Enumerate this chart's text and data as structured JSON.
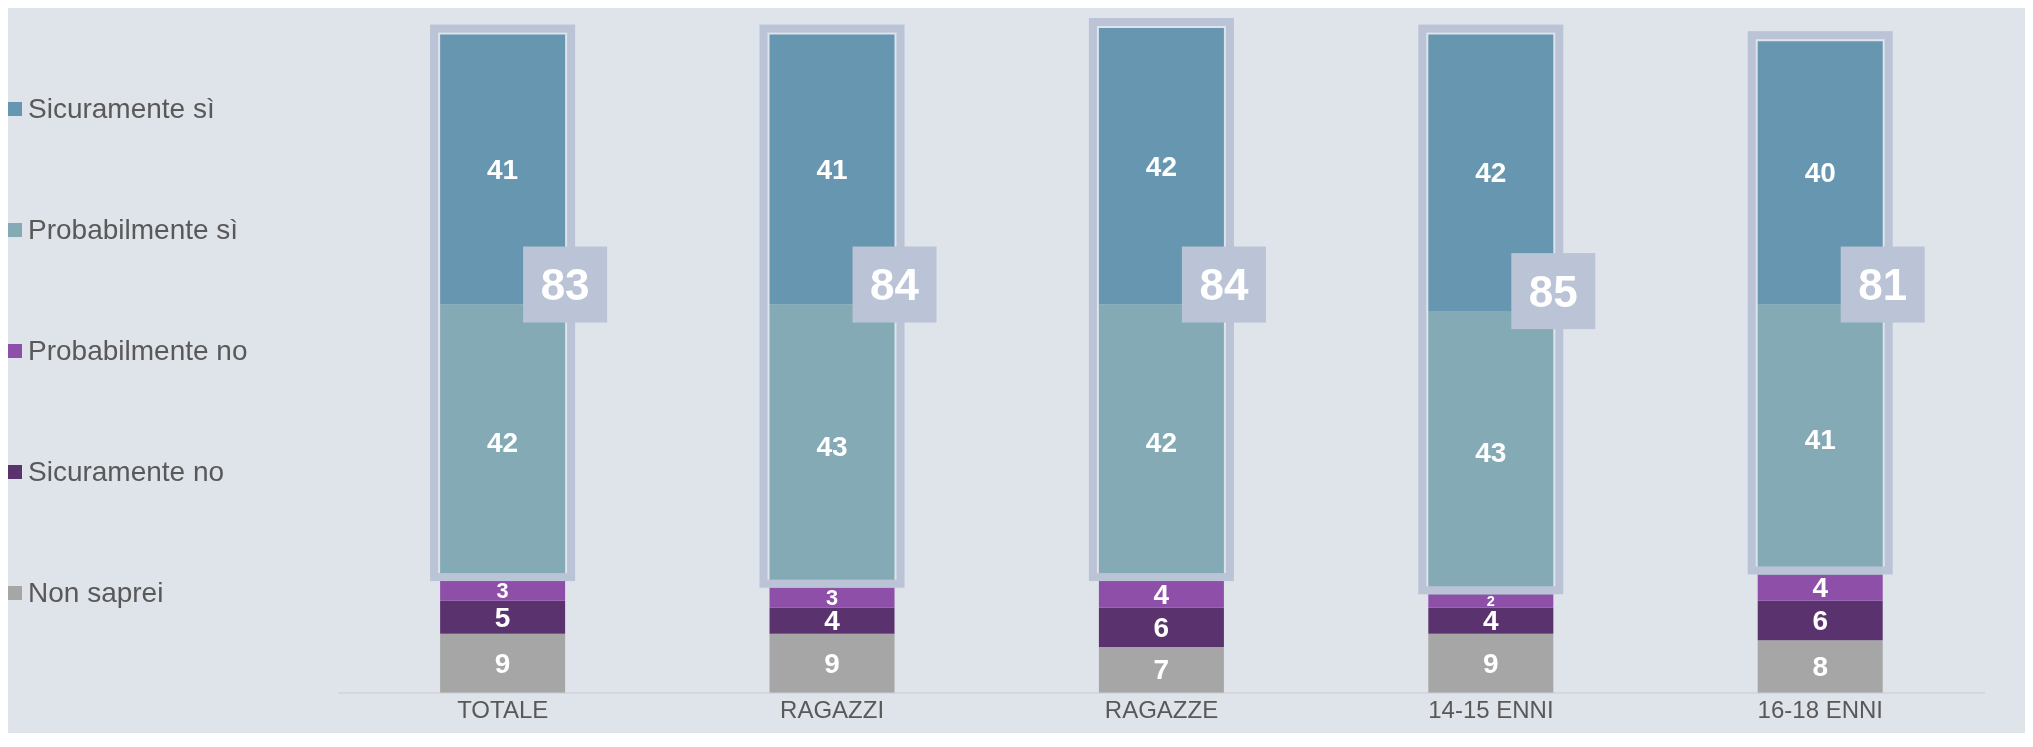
{
  "chart_data": {
    "type": "bar",
    "stacked": true,
    "categories": [
      "TOTALE",
      "RAGAZZI",
      "RAGAZZE",
      "14-15 ENNI",
      "16-18 ENNI"
    ],
    "series": [
      {
        "name": "Non saprei",
        "color": "#a6a6a6",
        "values": [
          9,
          9,
          7,
          9,
          8
        ]
      },
      {
        "name": "Sicuramente no",
        "color": "#5a336e",
        "values": [
          5,
          4,
          6,
          4,
          6
        ]
      },
      {
        "name": "Probabilmente no",
        "color": "#8e4fa8",
        "values": [
          3,
          3,
          4,
          2,
          4
        ]
      },
      {
        "name": "Probabilmente sì",
        "color": "#84abb5",
        "values": [
          42,
          43,
          42,
          43,
          41
        ]
      },
      {
        "name": "Sicuramente sì",
        "color": "#6797b0",
        "values": [
          41,
          41,
          42,
          42,
          40
        ]
      }
    ],
    "data_labels": true,
    "annotations": [
      "83",
      "84",
      "84",
      "85",
      "81"
    ],
    "legend": "left"
  }
}
